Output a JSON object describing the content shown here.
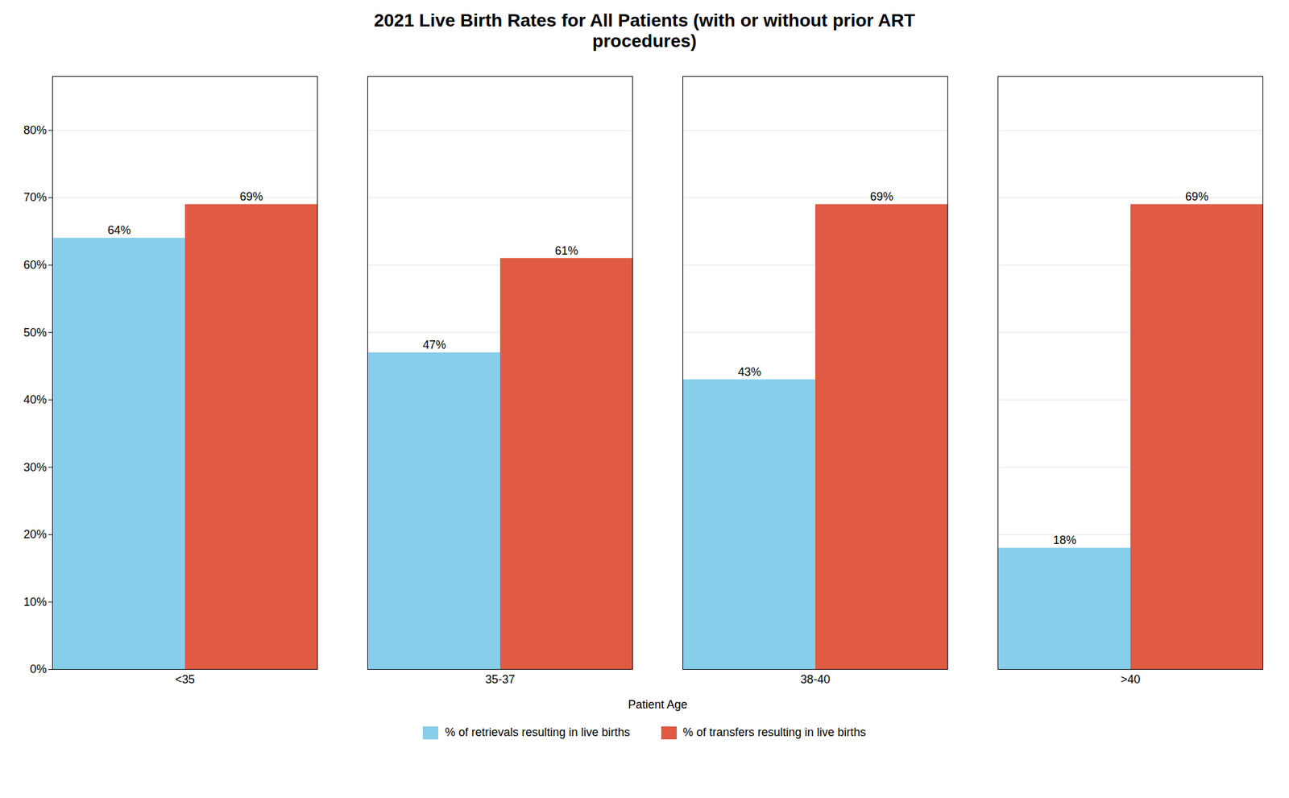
{
  "chart_data": {
    "type": "bar",
    "title": "2021 Live Birth Rates for All Patients (with or without prior ART\nprocedures)",
    "xlabel": "Patient Age",
    "categories": [
      "<35",
      "35-37",
      "38-40",
      ">40"
    ],
    "series": [
      {
        "name": "% of retrievals resulting in live births",
        "color": "#87CEEB",
        "values": [
          0.64,
          0.47,
          0.43,
          0.18
        ],
        "value_labels": [
          "64%",
          "47%",
          "43%",
          "18%"
        ]
      },
      {
        "name": "% of transfers resulting in live births",
        "color": "#E05A44",
        "values": [
          0.69,
          0.61,
          0.69,
          0.69
        ],
        "value_labels": [
          "69%",
          "61%",
          "69%",
          "69%"
        ]
      }
    ],
    "ylim": [
      0,
      0.88
    ],
    "yticks": [
      {
        "value": 0,
        "label": "0%"
      },
      {
        "value": 0.1,
        "label": "10%"
      },
      {
        "value": 0.2,
        "label": "20%"
      },
      {
        "value": 0.3,
        "label": "30%"
      },
      {
        "value": 0.4,
        "label": "40%"
      },
      {
        "value": 0.5,
        "label": "50%"
      },
      {
        "value": 0.6,
        "label": "60%"
      },
      {
        "value": 0.7,
        "label": "70%"
      },
      {
        "value": 0.8,
        "label": "80%"
      }
    ],
    "grid": true,
    "legend": "bottom",
    "data_labels": true
  }
}
